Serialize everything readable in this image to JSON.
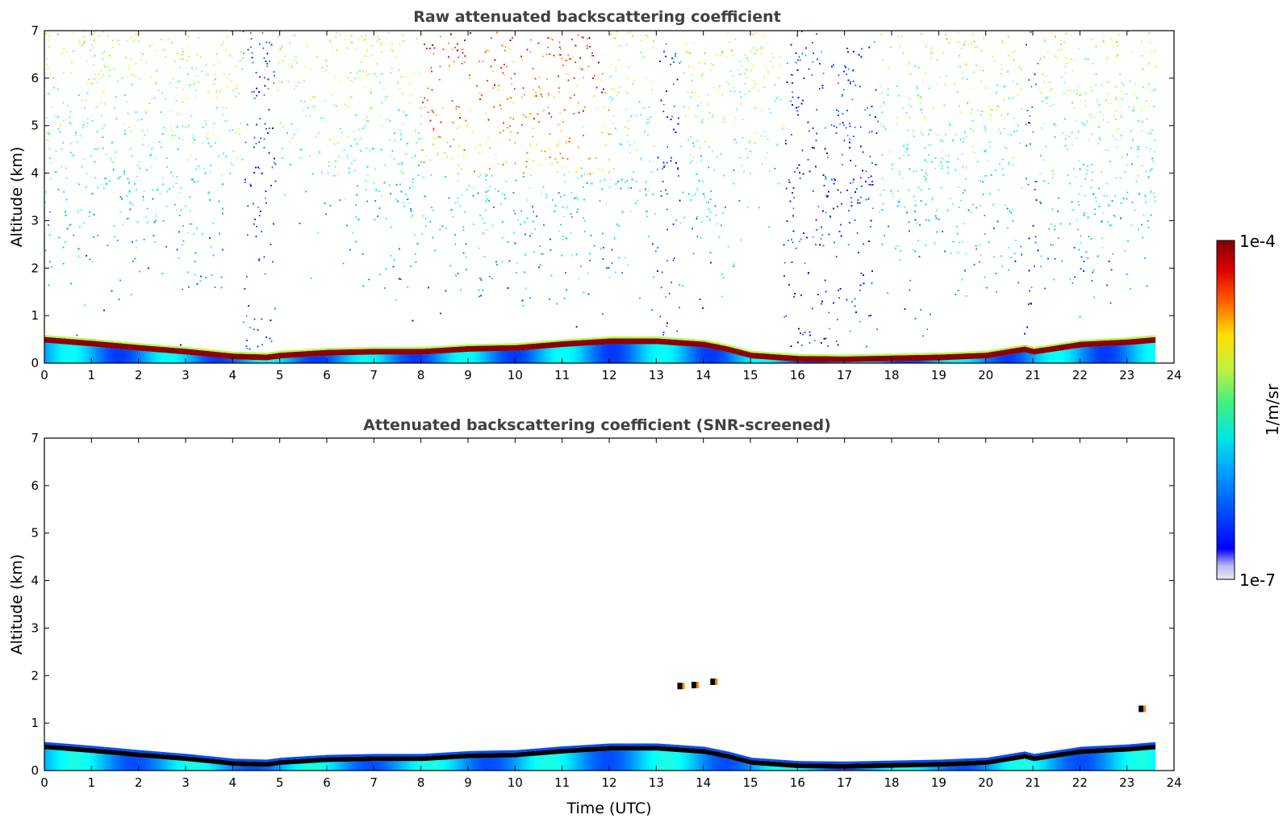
{
  "chart_data": [
    {
      "type": "heatmap",
      "title": "Raw attenuated backscattering coefficient",
      "xlabel": "",
      "ylabel": "Altitude (km)",
      "xlim": [
        0,
        24
      ],
      "ylim": [
        0,
        7
      ],
      "xticks": [
        "0",
        "1",
        "2",
        "3",
        "4",
        "5",
        "6",
        "7",
        "8",
        "9",
        "10",
        "11",
        "12",
        "13",
        "14",
        "15",
        "16",
        "17",
        "18",
        "19",
        "20",
        "21",
        "22",
        "23",
        "24"
      ],
      "yticks": [
        "0",
        "1",
        "2",
        "3",
        "4",
        "5",
        "6",
        "7"
      ],
      "data_end_time": 23.6,
      "boundary_layer_top": [
        [
          0,
          0.55
        ],
        [
          1,
          0.47
        ],
        [
          2,
          0.38
        ],
        [
          3,
          0.3
        ],
        [
          4,
          0.2
        ],
        [
          4.7,
          0.18
        ],
        [
          5,
          0.22
        ],
        [
          6,
          0.28
        ],
        [
          7,
          0.3
        ],
        [
          8,
          0.3
        ],
        [
          9,
          0.36
        ],
        [
          10,
          0.38
        ],
        [
          11,
          0.46
        ],
        [
          12,
          0.52
        ],
        [
          13,
          0.52
        ],
        [
          14,
          0.45
        ],
        [
          14.5,
          0.35
        ],
        [
          15,
          0.22
        ],
        [
          16,
          0.15
        ],
        [
          17,
          0.14
        ],
        [
          18,
          0.16
        ],
        [
          19,
          0.18
        ],
        [
          20,
          0.22
        ],
        [
          20.8,
          0.35
        ],
        [
          21,
          0.3
        ],
        [
          22,
          0.45
        ],
        [
          23,
          0.5
        ],
        [
          23.6,
          0.55
        ]
      ],
      "high_noise_time_bands": [
        [
          4.2,
          4.9
        ],
        [
          15.7,
          17.7
        ],
        [
          20.8,
          21.1
        ],
        [
          13.0,
          13.5
        ]
      ],
      "strong_signal_region": {
        "time_range": [
          8,
          12
        ],
        "altitude_range": [
          4,
          7
        ]
      },
      "grid": false
    },
    {
      "type": "heatmap",
      "title": "Attenuated backscattering coefficient (SNR-screened)",
      "xlabel": "Time (UTC)",
      "ylabel": "Altitude (km)",
      "xlim": [
        0,
        24
      ],
      "ylim": [
        0,
        7
      ],
      "xticks": [
        "0",
        "1",
        "2",
        "3",
        "4",
        "5",
        "6",
        "7",
        "8",
        "9",
        "10",
        "11",
        "12",
        "13",
        "14",
        "15",
        "16",
        "17",
        "18",
        "19",
        "20",
        "21",
        "22",
        "23",
        "24"
      ],
      "yticks": [
        "0",
        "1",
        "2",
        "3",
        "4",
        "5",
        "6",
        "7"
      ],
      "data_end_time": 23.6,
      "cloud_features": [
        {
          "time": 13.5,
          "altitude": 1.78
        },
        {
          "time": 13.8,
          "altitude": 1.8
        },
        {
          "time": 14.2,
          "altitude": 1.87
        },
        {
          "time": 23.3,
          "altitude": 1.3
        }
      ],
      "grid": false
    }
  ],
  "colorbar": {
    "label": "1/m/sr",
    "max_label": "1e-4",
    "min_label": "1e-7",
    "colormap": "jet",
    "scale": "log",
    "location": "right"
  },
  "colors": {
    "background": "#ffffff",
    "title": "#404040",
    "boundary_layer_raw": "#8b0000",
    "boundary_layer_screened": "#000000"
  }
}
